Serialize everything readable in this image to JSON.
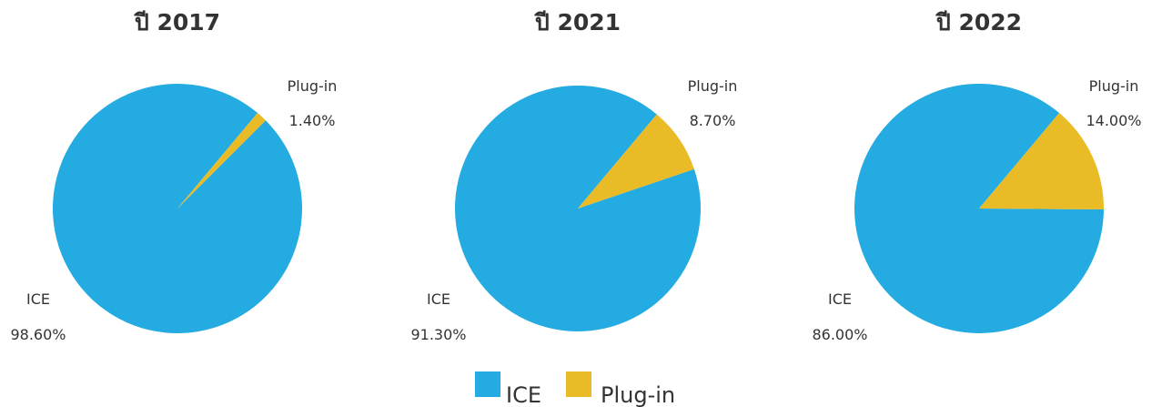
{
  "chart_data": [
    {
      "type": "pie",
      "title": "ปี 2017",
      "categories": [
        "ICE",
        "Plug-in"
      ],
      "values": [
        98.6,
        1.4
      ],
      "value_labels": [
        "98.60%",
        "1.40%"
      ]
    },
    {
      "type": "pie",
      "title": "ปี 2021",
      "categories": [
        "ICE",
        "Plug-in"
      ],
      "values": [
        91.3,
        8.7
      ],
      "value_labels": [
        "91.30%",
        "8.70%"
      ]
    },
    {
      "type": "pie",
      "title": "ปี 2022",
      "categories": [
        "ICE",
        "Plug-in"
      ],
      "values": [
        86.0,
        14.0
      ],
      "value_labels": [
        "86.00%",
        "14.00%"
      ]
    }
  ],
  "colors": {
    "ICE": "#24ABE2",
    "Plug-in": "#E9BC27"
  },
  "legend": {
    "placement": "bottom-center",
    "items": [
      {
        "label": "ICE",
        "color_key": "ICE"
      },
      {
        "label": "Plug-in",
        "color_key": "Plug-in"
      }
    ]
  }
}
